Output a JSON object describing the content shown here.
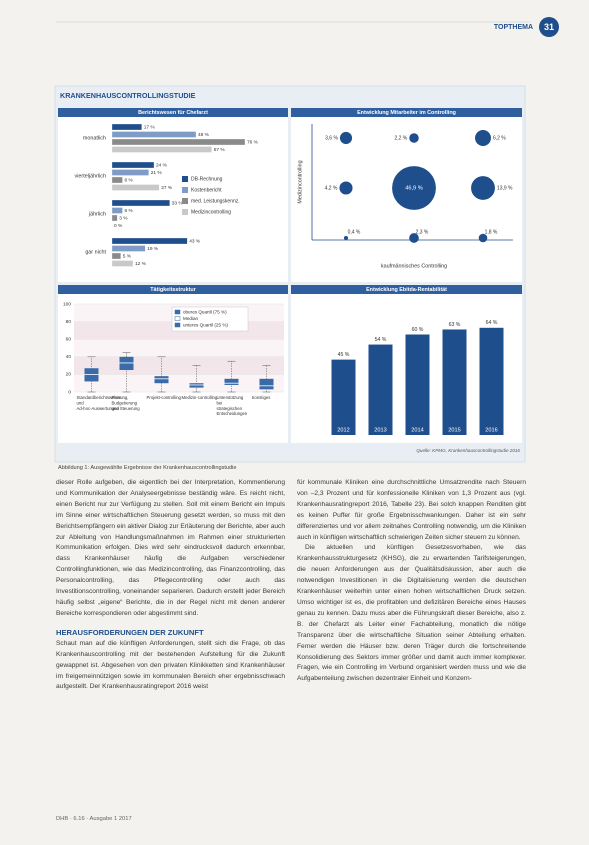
{
  "header": {
    "section": "TOPTHEMA",
    "page": "31"
  },
  "figure": {
    "title": "KRANKENHAUSCONTROLLINGSTUDIE",
    "source": "Quelle: KPMG, Krankenhauscontrollingstudie 2016",
    "caption": "Abbildung 1: Ausgewählte Ergebnisse der Krankenhauscontrollingstudie"
  },
  "chart_data": [
    {
      "type": "hbar",
      "title": "Berichtswesen für Chefarzt",
      "categories": [
        "monatlich",
        "vierteljährlich",
        "jährlich",
        "gar nicht"
      ],
      "xlim": [
        0,
        100
      ],
      "series": [
        {
          "name": "DB-Rechnung",
          "color": "#1f4e8c",
          "values": [
            17,
            24,
            33,
            43
          ],
          "value_labels": [
            "17 %",
            "24 %",
            "33 %",
            "43 %"
          ]
        },
        {
          "name": "Kostenbericht",
          "color": "#7f9cc6",
          "values": [
            48,
            21,
            6,
            19
          ],
          "value_labels": [
            "48 %",
            "21 %",
            "6 %",
            "19 %"
          ]
        },
        {
          "name": "med. Leistungskennz.",
          "color": "#8a8a8a",
          "values": [
            76,
            6,
            3,
            5
          ],
          "value_labels": [
            "76 %",
            "6 %",
            "3 %",
            "5 %"
          ]
        },
        {
          "name": "Medizincontrolling",
          "color": "#c9c9c9",
          "values": [
            57,
            27,
            0,
            12
          ],
          "value_labels": [
            "57 %",
            "27 %",
            "0 %",
            "12 %"
          ]
        }
      ]
    },
    {
      "type": "bubble",
      "title": "Entwicklung Mitarbeiter im Controlling",
      "x_label": "kaufmännisches Controlling",
      "y_label": "Medizincontrolling",
      "color": "#1f4e8c",
      "values": [
        [
          3.6,
          2.2,
          6.2
        ],
        [
          4.2,
          46.9,
          13.9
        ],
        [
          0.4,
          2.3,
          1.8
        ]
      ],
      "value_labels": [
        [
          "3,6 %",
          "2,2 %",
          "6,2 %"
        ],
        [
          "4,2 %",
          "46,9 %",
          "13,9 %"
        ],
        [
          "0,4 %",
          "2,3 %",
          "1,8 %"
        ]
      ]
    },
    {
      "type": "box",
      "title": "Tätigkeitsstruktur",
      "color": "#3b6aa8",
      "categories": [
        "Standardberichtswesen und Ad-hoc-Auswertungen",
        "Planung, Budgetierung und Steuerung",
        "Projekt-controlling",
        "Medizin-controlling",
        "Unterstützung bei strategischen Entscheidungen",
        "Sonstiges"
      ],
      "whisker_low": [
        0,
        0,
        0,
        0,
        0,
        0
      ],
      "q1": [
        12,
        25,
        10,
        5,
        8,
        3
      ],
      "median": [
        20,
        33,
        15,
        8,
        10,
        7
      ],
      "q3": [
        27,
        40,
        18,
        10,
        15,
        15
      ],
      "whisker_high": [
        40,
        45,
        40,
        30,
        35,
        30
      ],
      "legend": [
        "oberes Quartil (75 %)",
        "Median",
        "unteres Quartil (25 %)"
      ],
      "ylim": [
        0,
        100
      ],
      "yticks": [
        0,
        20,
        40,
        60,
        80,
        100
      ]
    },
    {
      "type": "bar",
      "title": "Entwicklung Ebitda-Rentabilität",
      "color": "#1f4e8c",
      "categories": [
        "2012",
        "2013",
        "2014",
        "2015",
        "2016"
      ],
      "values": [
        45,
        54,
        60,
        63,
        64
      ],
      "value_labels": [
        "45 %",
        "54 %",
        "60 %",
        "63 %",
        "64 %"
      ],
      "ylim": [
        0,
        80
      ]
    }
  ],
  "article": {
    "column_1": {
      "paragraphs": [
        "dieser Rolle aufgeben, die eigentlich bei der Interpretation, Kommentierung und Kommunikation der Analyseergebnisse beständig wäre. Es reicht nicht, einen Bericht nur zur Verfügung zu stellen. Soll mit einem Bericht ein Impuls im Sinne einer wirtschaftlichen Steuerung gesetzt werden, so muss mit den Berichtsempfängern ein aktiver Dialog zur Erläuterung der Berichte, aber auch zur Ableitung von Handlungsmaßnahmen im Rahmen einer strukturierten Kommunikation erfolgen. Dies wird sehr eindrucksvoll dadurch erkennbar, dass Krankenhäuser häufig die Aufgaben verschiedener Controllingfunktionen, wie das Medizincontrolling, das Finanzcontrolling, das Personalcontrolling, das Pflegecontrolling oder auch das Investitionscontrolling, voneinander separieren. Dadurch erstellt jeder Bereich häufig selbst „eigene“ Berichte, die in der Regel nicht mit denen anderer Bereiche korrespondieren oder abgestimmt sind."
      ],
      "heading": "HERAUSFORDERUNGEN DER ZUKUNFT",
      "paragraphs_2": [
        "Schaut man auf die künftigen Anforderungen, stellt sich die Frage, ob das Krankenhauscontrolling mit der bestehenden Aufstellung für die Zukunft gewappnet ist. Abgesehen von den privaten Klinikketten sind Krankenhäuser im freigemeinnützigen sowie im kommunalen Bereich eher ergebnisschwach aufgestellt. Der Krankenhausratingreport 2016 weist"
      ]
    },
    "column_2": {
      "paragraphs": [
        "für kommunale Kliniken eine durchschnittliche Umsatzrendite nach Steuern von –2,3 Prozent und für konfessionelle Kliniken von 1,3 Prozent aus (vgl. Krankenhausratingreport 2016, Tabelle 23). Bei solch knappen Renditen gibt es keinen Puffer für große Ergebnisschwankungen. Daher ist ein sehr differenziertes und vor allem zeitnahes Controlling notwendig, um die Kliniken auch in künftigen wirtschaftlich schwierigen Zeiten sicher steuern zu können.",
        "Die aktuellen und künftigen Gesetzesvorhaben, wie das Krankenhausstrukturgesetz (KHSG), die zu erwartenden Tarifsteigerungen, die neuen Anforderungen aus der Qualitätsdiskussion, aber auch die notwendigen Investitionen in die Digitalisierung werden die deutschen Krankenhäuser weiterhin unter einen hohen wirtschaftlichen Druck setzen. Umso wichtiger ist es, die profitablen und defizitären Bereiche eines Hauses genau zu kennen. Dazu muss aber die Führungskraft dieser Bereiche, also z. B. der Chefarzt als Leiter einer Fachabteilung, monatlich die nötige Transparenz über die wirtschaftliche Situation seiner Abteilung erhalten. Ferner werden die Häuser bzw. deren Träger durch die fortschreitende Konsolidierung des Sektors immer größer und damit auch immer komplexer. Fragen, wie ein Controlling im Verbund organisiert werden muss und wie die Aufgabenteilung zwischen dezentraler Einheit und Konzern-"
      ]
    }
  },
  "footer": "DHB · 6.16 · Ausgabe 1 2017"
}
